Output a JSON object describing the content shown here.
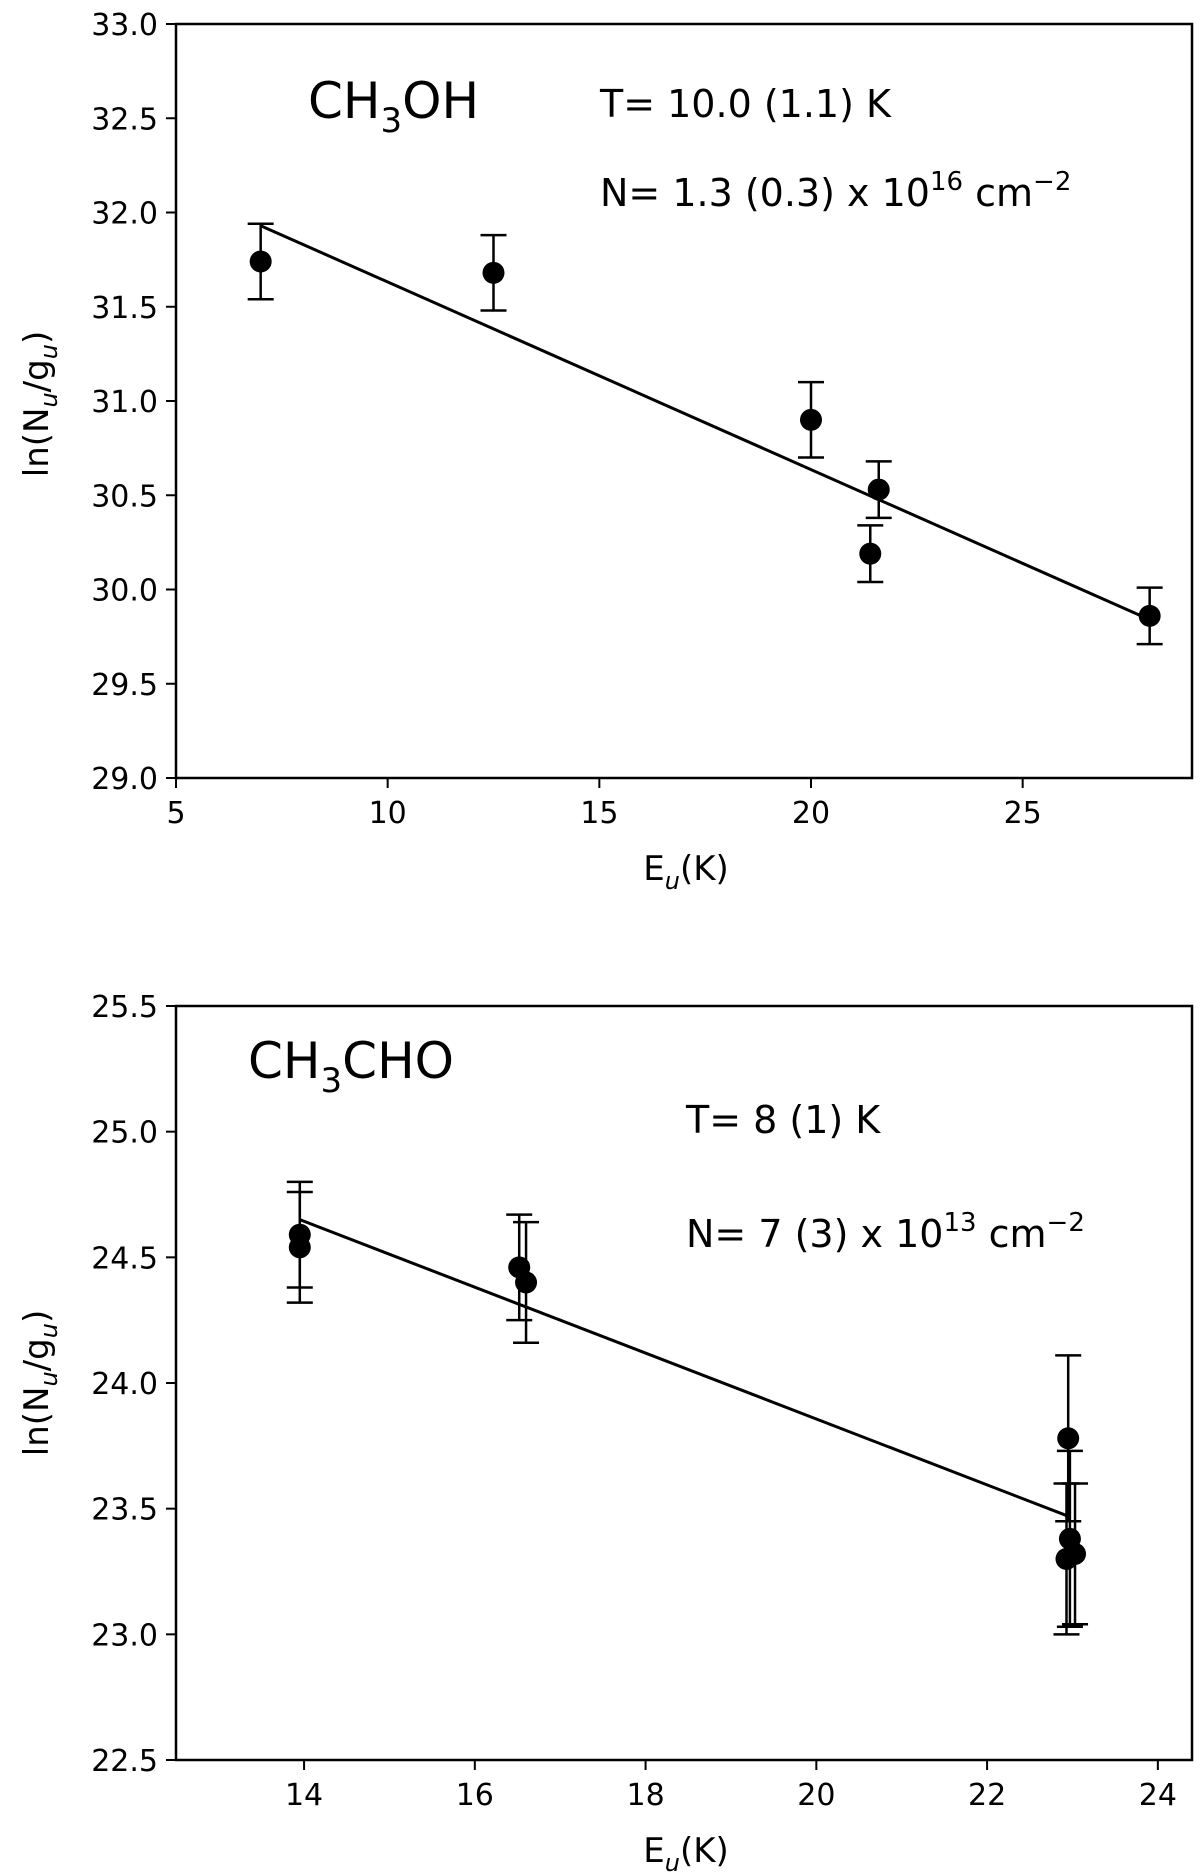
{
  "chart_data": [
    {
      "type": "scatter",
      "species": {
        "main": "CH",
        "sub": "3",
        "rest": "OH"
      },
      "annotations": {
        "temperature": "T= 10.0 (1.1) K",
        "column_prefix": "N= 1.3 (0.3) x 10",
        "column_exp": "16",
        "column_unit": " cm",
        "column_unit_exp": "−2"
      },
      "xlabel": {
        "main": "E",
        "sub": "u",
        "rest": "(K)"
      },
      "ylabel": {
        "pre": "ln(N",
        "sub1": "u",
        "mid": "/g",
        "sub2": "u",
        "post": ")"
      },
      "xlim": [
        5,
        29
      ],
      "ylim": [
        29.0,
        33.0
      ],
      "xticks": [
        5,
        10,
        15,
        20,
        25
      ],
      "yticks": [
        29.0,
        29.5,
        30.0,
        30.5,
        31.0,
        31.5,
        32.0,
        32.5,
        33.0
      ],
      "xtick_labels": [
        "5",
        "10",
        "15",
        "20",
        "25"
      ],
      "ytick_labels": [
        "29.0",
        "29.5",
        "30.0",
        "30.5",
        "31.0",
        "31.5",
        "32.0",
        "32.5",
        "33.0"
      ],
      "points": [
        {
          "x": 7.0,
          "y": 31.74,
          "err": 0.2
        },
        {
          "x": 12.5,
          "y": 31.68,
          "err": 0.2
        },
        {
          "x": 20.0,
          "y": 30.9,
          "err": 0.2
        },
        {
          "x": 21.4,
          "y": 30.19,
          "err": 0.15
        },
        {
          "x": 21.6,
          "y": 30.53,
          "err": 0.15
        },
        {
          "x": 28.0,
          "y": 29.86,
          "err": 0.15
        }
      ],
      "fit": {
        "x": [
          7.0,
          28.0
        ],
        "y": [
          31.93,
          29.84
        ]
      }
    },
    {
      "type": "scatter",
      "species": {
        "main": "CH",
        "sub": "3",
        "rest": "CHO"
      },
      "annotations": {
        "temperature": "T= 8 (1) K",
        "column_prefix": "N= 7 (3) x 10",
        "column_exp": "13",
        "column_unit": " cm",
        "column_unit_exp": "−2"
      },
      "xlabel": {
        "main": "E",
        "sub": "u",
        "rest": "(K)"
      },
      "ylabel": {
        "pre": "ln(N",
        "sub1": "u",
        "mid": "/g",
        "sub2": "u",
        "post": ")"
      },
      "xlim": [
        12.5,
        24.4
      ],
      "ylim": [
        22.5,
        25.5
      ],
      "xticks": [
        14,
        16,
        18,
        20,
        22,
        24
      ],
      "yticks": [
        22.5,
        23.0,
        23.5,
        24.0,
        24.5,
        25.0,
        25.5
      ],
      "xtick_labels": [
        "14",
        "16",
        "18",
        "20",
        "22",
        "24"
      ],
      "ytick_labels": [
        "22.5",
        "23.0",
        "23.5",
        "24.0",
        "24.5",
        "25.0",
        "25.5"
      ],
      "points": [
        {
          "x": 13.95,
          "y": 24.59,
          "err": 0.21
        },
        {
          "x": 13.95,
          "y": 24.54,
          "err": 0.22
        },
        {
          "x": 16.52,
          "y": 24.46,
          "err": 0.21
        },
        {
          "x": 16.6,
          "y": 24.4,
          "err": 0.24
        },
        {
          "x": 22.95,
          "y": 23.78,
          "err": 0.33
        },
        {
          "x": 22.97,
          "y": 23.38,
          "err": 0.35
        },
        {
          "x": 22.93,
          "y": 23.3,
          "err": 0.3
        },
        {
          "x": 23.03,
          "y": 23.32,
          "err": 0.28
        }
      ],
      "fit": {
        "x": [
          13.95,
          22.95
        ],
        "y": [
          24.65,
          23.47
        ]
      }
    }
  ]
}
